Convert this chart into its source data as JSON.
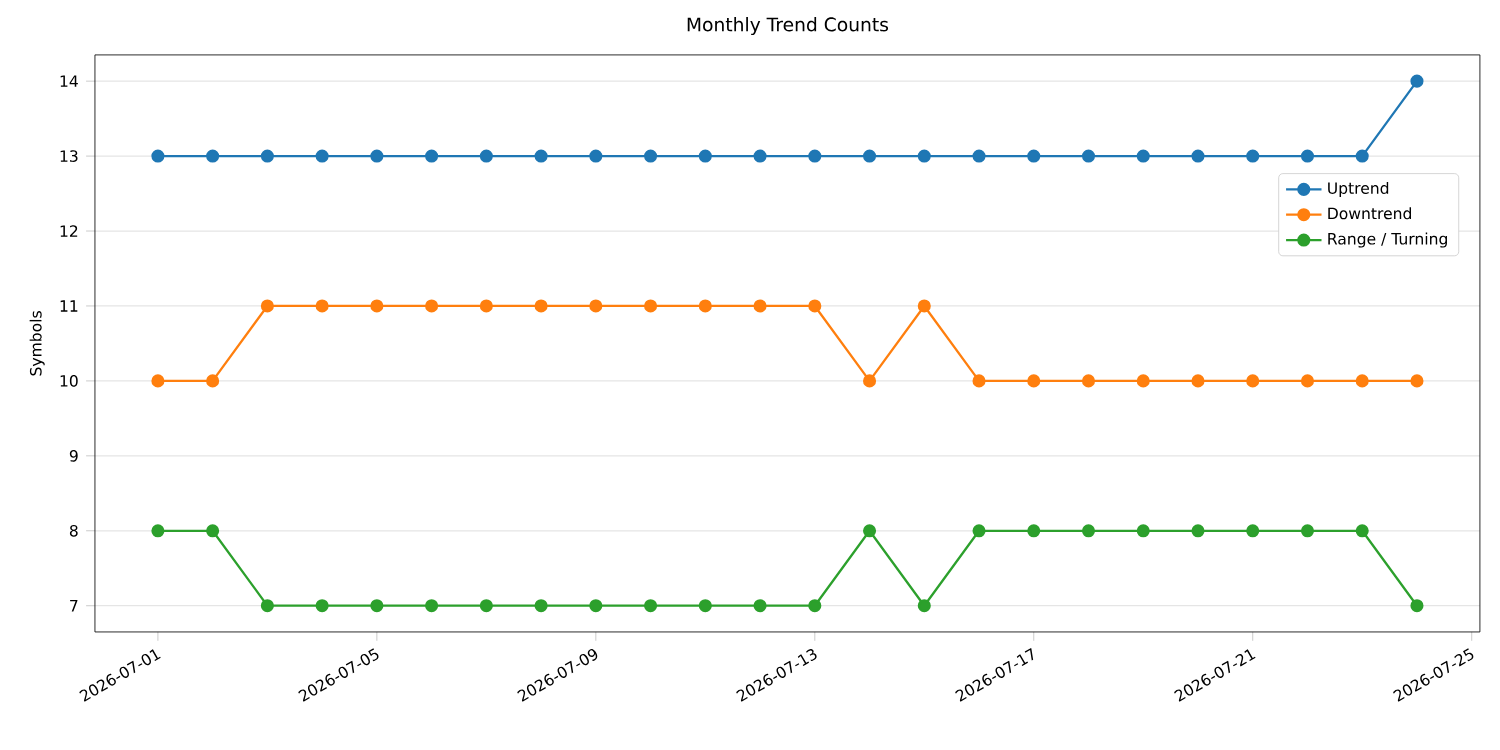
{
  "chart_data": {
    "type": "line",
    "title": "Monthly Trend Counts",
    "ylabel": "Symbols",
    "x": [
      "2026-07-01",
      "2026-07-02",
      "2026-07-03",
      "2026-07-04",
      "2026-07-05",
      "2026-07-06",
      "2026-07-07",
      "2026-07-08",
      "2026-07-09",
      "2026-07-10",
      "2026-07-11",
      "2026-07-12",
      "2026-07-13",
      "2026-07-14",
      "2026-07-15",
      "2026-07-16",
      "2026-07-17",
      "2026-07-18",
      "2026-07-19",
      "2026-07-20",
      "2026-07-21",
      "2026-07-22",
      "2026-07-23",
      "2026-07-24"
    ],
    "series": [
      {
        "name": "Uptrend",
        "color": "#1f77b4",
        "values": [
          13,
          13,
          13,
          13,
          13,
          13,
          13,
          13,
          13,
          13,
          13,
          13,
          13,
          13,
          13,
          13,
          13,
          13,
          13,
          13,
          13,
          13,
          13,
          14
        ]
      },
      {
        "name": "Downtrend",
        "color": "#ff7f0e",
        "values": [
          10,
          10,
          11,
          11,
          11,
          11,
          11,
          11,
          11,
          11,
          11,
          11,
          11,
          10,
          11,
          10,
          10,
          10,
          10,
          10,
          10,
          10,
          10,
          10
        ]
      },
      {
        "name": "Range / Turning",
        "color": "#2ca02c",
        "values": [
          8,
          8,
          7,
          7,
          7,
          7,
          7,
          7,
          7,
          7,
          7,
          7,
          7,
          8,
          7,
          8,
          8,
          8,
          8,
          8,
          8,
          8,
          8,
          7
        ]
      }
    ],
    "xlim": [
      "2026-06-29T20:24",
      "2026-07-25T03:36"
    ],
    "xticks": [
      {
        "value": "2026-07-01",
        "label": "2026-07-01"
      },
      {
        "value": "2026-07-05",
        "label": "2026-07-05"
      },
      {
        "value": "2026-07-09",
        "label": "2026-07-09"
      },
      {
        "value": "2026-07-13",
        "label": "2026-07-13"
      },
      {
        "value": "2026-07-17",
        "label": "2026-07-17"
      },
      {
        "value": "2026-07-21",
        "label": "2026-07-21"
      },
      {
        "value": "2026-07-25",
        "label": "2026-07-25"
      }
    ],
    "ylim": [
      6.65,
      14.35
    ],
    "yticks": [
      7,
      8,
      9,
      10,
      11,
      12,
      13,
      14
    ],
    "grid": "y",
    "legend": "top right",
    "marker": "circle",
    "line_style": "solid"
  }
}
